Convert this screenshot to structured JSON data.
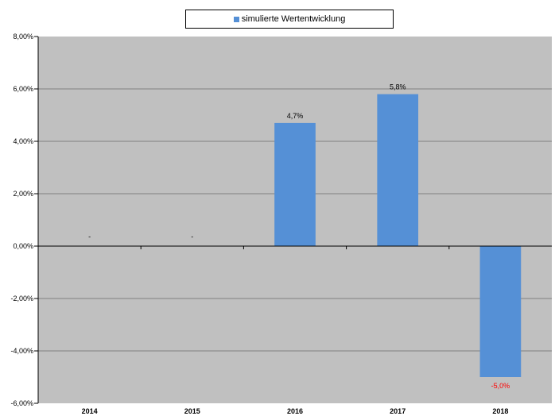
{
  "chart_data": {
    "type": "bar",
    "categories": [
      "2014",
      "2015",
      "2016",
      "2017",
      "2018"
    ],
    "series": [
      {
        "name": "simulierte Wertentwicklung",
        "values": [
          null,
          null,
          4.7,
          5.8,
          -5.0
        ],
        "color": "#5590d6"
      }
    ],
    "data_labels": [
      "-",
      "-",
      "4,7%",
      "5,8%",
      "-5,0%"
    ],
    "data_label_colors": [
      "#000000",
      "#000000",
      "#000000",
      "#000000",
      "#ff0000"
    ],
    "ylim": [
      -6,
      8
    ],
    "yticks": [
      -6,
      -4,
      -2,
      0,
      2,
      4,
      6,
      8
    ],
    "ytick_labels": [
      "-6,00%",
      "-4,00%",
      "-2,00%",
      "0,00%",
      "2,00%",
      "4,00%",
      "6,00%",
      "8,00%"
    ],
    "legend": {
      "position": "top-center",
      "label": "simulierte Wertentwicklung"
    },
    "grid": true,
    "plot_background": "#c0c0c0"
  }
}
